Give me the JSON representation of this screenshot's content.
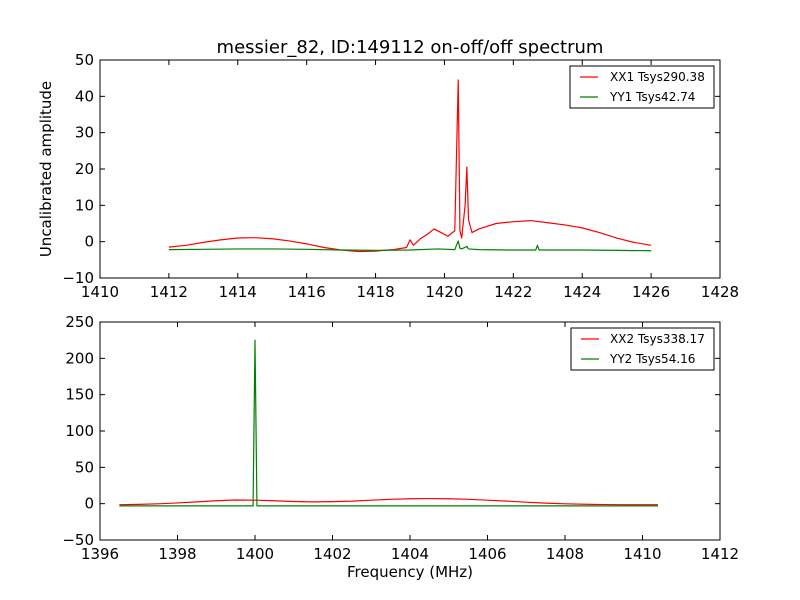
{
  "colors": {
    "xx": "#ff0000",
    "yy": "#008000"
  },
  "chart_data": [
    {
      "type": "line",
      "title": "messier_82, ID:149112 on-off/off spectrum",
      "xlabel": "",
      "ylabel": "Uncalibrated amplitude",
      "xlim": [
        1410,
        1428
      ],
      "ylim": [
        -10,
        50
      ],
      "xticks": [
        1410,
        1412,
        1414,
        1416,
        1418,
        1420,
        1422,
        1424,
        1426,
        1428
      ],
      "yticks": [
        -10,
        0,
        10,
        20,
        30,
        40,
        50
      ],
      "legend_position": "top-right",
      "series": [
        {
          "name": "XX1 Tsys290.38",
          "color": "#ff0000",
          "x": [
            1412.0,
            1412.5,
            1413.0,
            1413.5,
            1414.0,
            1414.5,
            1415.0,
            1415.5,
            1416.0,
            1416.5,
            1417.0,
            1417.5,
            1418.0,
            1418.5,
            1418.9,
            1419.0,
            1419.1,
            1419.3,
            1419.5,
            1419.7,
            1419.9,
            1420.1,
            1420.3,
            1420.4,
            1420.45,
            1420.5,
            1420.6,
            1420.65,
            1420.7,
            1420.8,
            1421.0,
            1421.5,
            1422.0,
            1422.5,
            1423.0,
            1423.5,
            1424.0,
            1424.5,
            1425.0,
            1425.5,
            1426.0
          ],
          "y": [
            -1.5,
            -1.0,
            -0.2,
            0.5,
            1.0,
            1.1,
            0.8,
            0.2,
            -0.6,
            -1.6,
            -2.3,
            -2.7,
            -2.6,
            -2.2,
            -1.6,
            0.5,
            -1.0,
            0.8,
            2.0,
            3.5,
            2.5,
            1.5,
            3.0,
            44.5,
            3.0,
            1.0,
            10.0,
            20.5,
            6.0,
            2.5,
            3.5,
            5.0,
            5.5,
            5.8,
            5.2,
            4.6,
            3.8,
            2.5,
            1.0,
            -0.2,
            -1.0
          ]
        },
        {
          "name": "YY1 Tsys42.74",
          "color": "#008000",
          "x": [
            1412.0,
            1413.0,
            1414.0,
            1415.0,
            1416.0,
            1417.0,
            1418.0,
            1419.0,
            1419.8,
            1420.3,
            1420.4,
            1420.45,
            1420.5,
            1420.65,
            1420.7,
            1421.0,
            1422.0,
            1422.65,
            1422.7,
            1422.75,
            1423.0,
            1424.0,
            1425.0,
            1426.0
          ],
          "y": [
            -2.2,
            -2.1,
            -2.0,
            -2.0,
            -2.1,
            -2.3,
            -2.4,
            -2.3,
            -2.0,
            -2.2,
            0.2,
            -1.8,
            -2.0,
            -1.3,
            -2.0,
            -2.2,
            -2.3,
            -2.3,
            -1.0,
            -2.3,
            -2.3,
            -2.3,
            -2.4,
            -2.5
          ]
        }
      ]
    },
    {
      "type": "line",
      "title": "",
      "xlabel": "Frequency (MHz)",
      "ylabel": "",
      "xlim": [
        1396,
        1412
      ],
      "ylim": [
        -50,
        250
      ],
      "xticks": [
        1396,
        1398,
        1400,
        1402,
        1404,
        1406,
        1408,
        1410,
        1412
      ],
      "yticks": [
        -50,
        0,
        50,
        100,
        150,
        200,
        250
      ],
      "legend_position": "top-right",
      "series": [
        {
          "name": "XX2 Tsys338.17",
          "color": "#ff0000",
          "x": [
            1396.5,
            1397.0,
            1397.5,
            1398.0,
            1398.5,
            1399.0,
            1399.5,
            1400.0,
            1400.5,
            1401.0,
            1401.5,
            1402.0,
            1402.5,
            1403.0,
            1403.5,
            1404.0,
            1404.5,
            1405.0,
            1405.5,
            1406.0,
            1406.5,
            1407.0,
            1407.5,
            1408.0,
            1408.5,
            1409.0,
            1409.5,
            1410.0,
            1410.4
          ],
          "y": [
            -1.5,
            -1.0,
            -0.2,
            1.0,
            2.5,
            4.0,
            5.0,
            4.8,
            4.0,
            3.0,
            2.5,
            2.8,
            3.5,
            4.8,
            6.0,
            6.8,
            7.0,
            6.8,
            6.0,
            4.8,
            3.5,
            2.0,
            0.8,
            -0.2,
            -0.8,
            -1.2,
            -1.5,
            -1.5,
            -1.5
          ]
        },
        {
          "name": "YY2 Tsys54.16",
          "color": "#008000",
          "x": [
            1396.5,
            1397.5,
            1398.5,
            1399.5,
            1399.95,
            1400.0,
            1400.05,
            1401.0,
            1402.0,
            1403.0,
            1404.0,
            1405.0,
            1406.0,
            1407.0,
            1408.0,
            1409.0,
            1410.0,
            1410.4
          ],
          "y": [
            -3.0,
            -3.0,
            -3.0,
            -3.0,
            -3.0,
            225.0,
            -3.0,
            -3.0,
            -3.0,
            -3.0,
            -3.0,
            -3.0,
            -3.0,
            -3.0,
            -3.0,
            -3.0,
            -3.0,
            -3.0
          ]
        }
      ]
    }
  ]
}
